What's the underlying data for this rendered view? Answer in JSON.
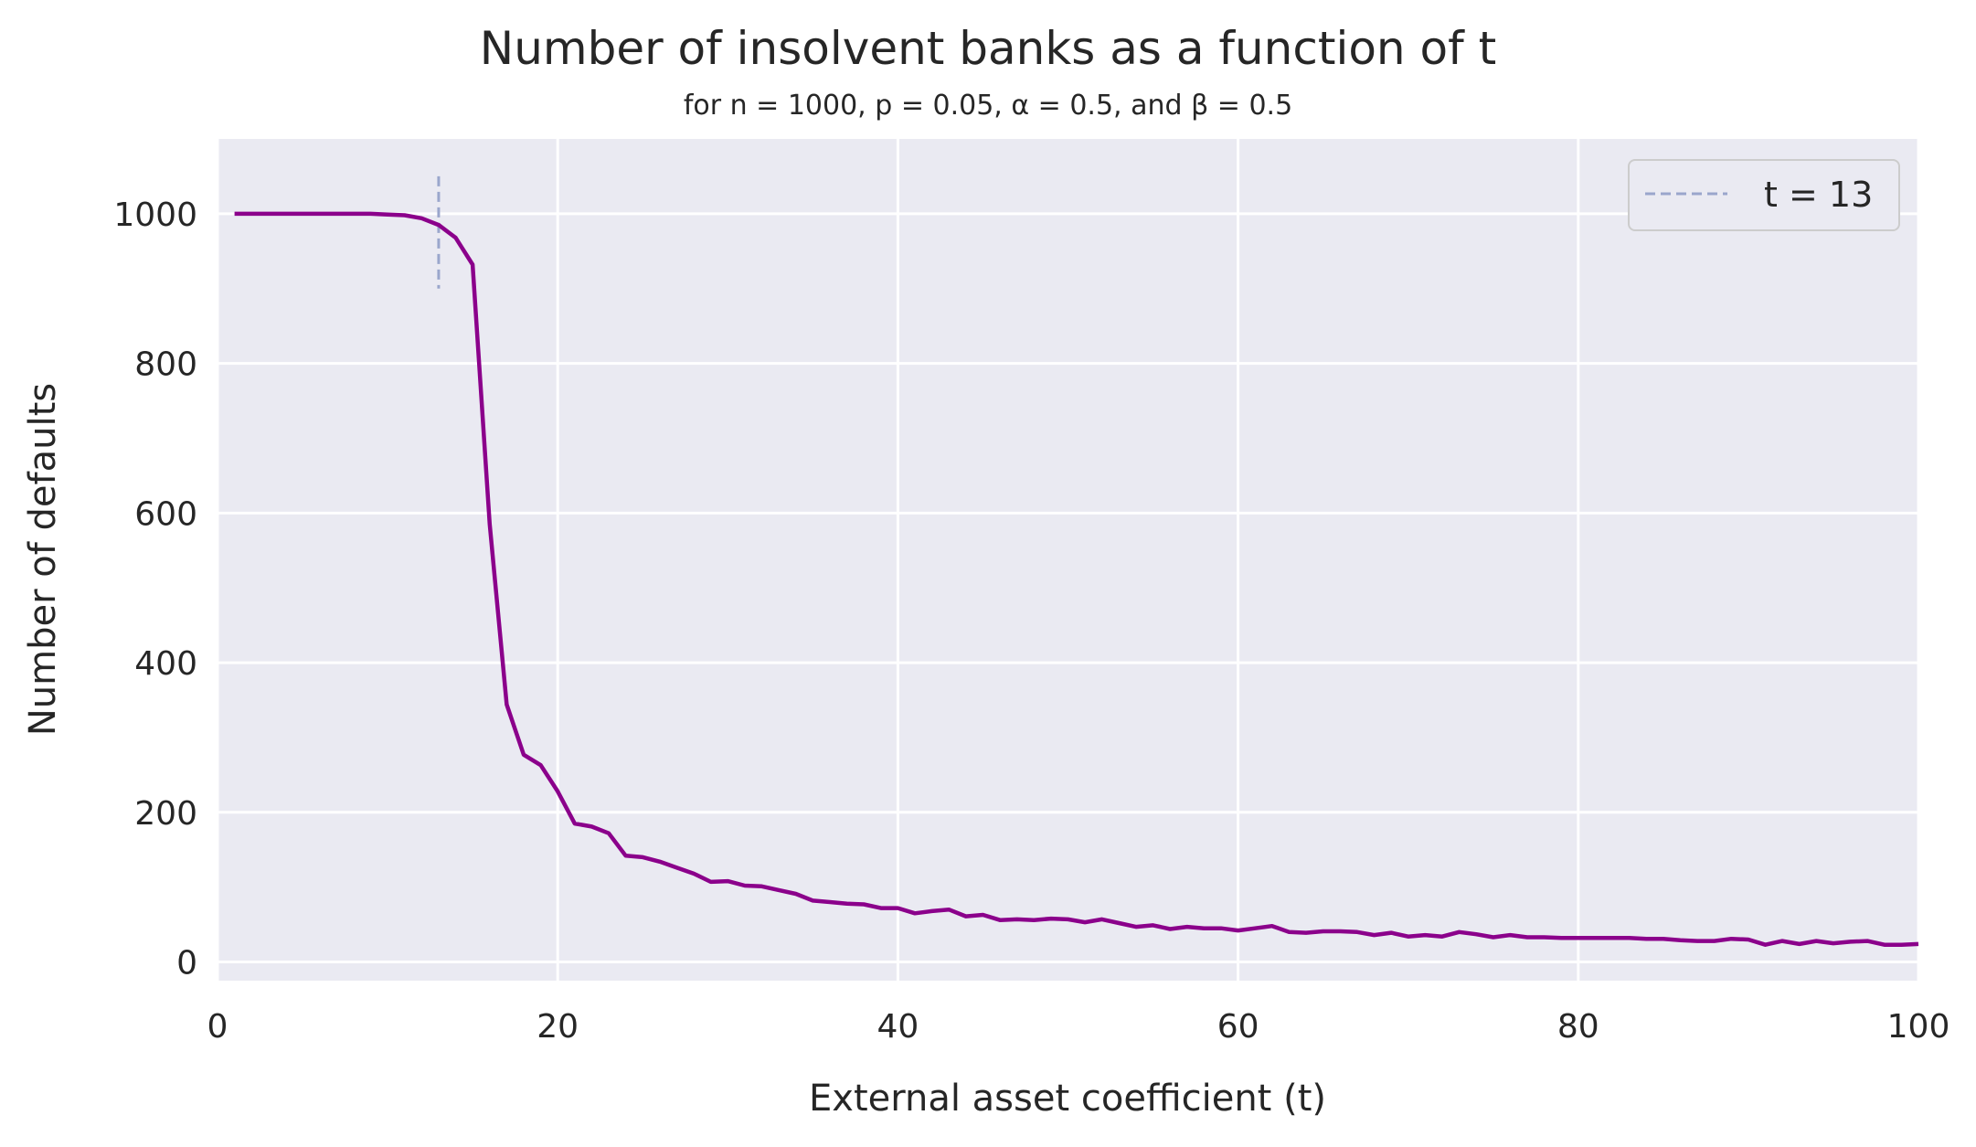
{
  "chart_data": {
    "type": "line",
    "title": "Number of insolvent banks as a function of t",
    "subtitle": "for n = 1000, p = 0.05, α = 0.5, and β = 0.5",
    "xlabel": "External asset coefficient (t)",
    "ylabel": "Number of defaults",
    "xlim": [
      0,
      100
    ],
    "ylim": [
      -25,
      1100
    ],
    "xticks": [
      "0",
      "20",
      "40",
      "60",
      "80",
      "100"
    ],
    "yticks": [
      "0",
      "200",
      "400",
      "600",
      "800",
      "1000"
    ],
    "grid": true,
    "legend_position": "top-right",
    "colors": {
      "series": "#8b008b",
      "marker": "#9aa6cc",
      "background": "#eaeaf2",
      "grid": "#ffffff"
    },
    "series": [
      {
        "name": "",
        "x": [
          1,
          2,
          3,
          4,
          5,
          6,
          7,
          8,
          9,
          10,
          11,
          12,
          13,
          14,
          15,
          16,
          17,
          18,
          19,
          20,
          21,
          22,
          23,
          24,
          25,
          26,
          27,
          28,
          29,
          30,
          31,
          32,
          33,
          34,
          35,
          36,
          37,
          38,
          39,
          40,
          41,
          42,
          43,
          44,
          45,
          46,
          47,
          48,
          49,
          50,
          51,
          52,
          53,
          54,
          55,
          56,
          57,
          58,
          59,
          60,
          61,
          62,
          63,
          64,
          65,
          66,
          67,
          68,
          69,
          70,
          71,
          72,
          73,
          74,
          75,
          76,
          77,
          78,
          79,
          80,
          81,
          82,
          83,
          84,
          85,
          86,
          87,
          88,
          89,
          90,
          91,
          92,
          93,
          94,
          95,
          96,
          97,
          98,
          99,
          100
        ],
        "y": [
          1000,
          1000,
          1000,
          1000,
          1000,
          1000,
          1000,
          1000,
          1000,
          999,
          998,
          994,
          985,
          968,
          932,
          585,
          344,
          277,
          263,
          228,
          185,
          181,
          172,
          142,
          140,
          134,
          126,
          118,
          107,
          108,
          102,
          101,
          96,
          91,
          82,
          80,
          78,
          77,
          72,
          72,
          65,
          68,
          70,
          61,
          63,
          56,
          57,
          56,
          58,
          57,
          53,
          57,
          52,
          47,
          49,
          44,
          47,
          45,
          45,
          42,
          45,
          48,
          40,
          39,
          41,
          41,
          40,
          36,
          39,
          34,
          36,
          34,
          40,
          37,
          33,
          36,
          33,
          33,
          32,
          32,
          32,
          32,
          32,
          31,
          31,
          29,
          28,
          28,
          31,
          30,
          23,
          28,
          24,
          28,
          25,
          27,
          28,
          23,
          23,
          24
        ]
      }
    ],
    "reference_line": {
      "x": 13,
      "y_range": [
        900,
        1050
      ],
      "label": "t = 13"
    }
  }
}
